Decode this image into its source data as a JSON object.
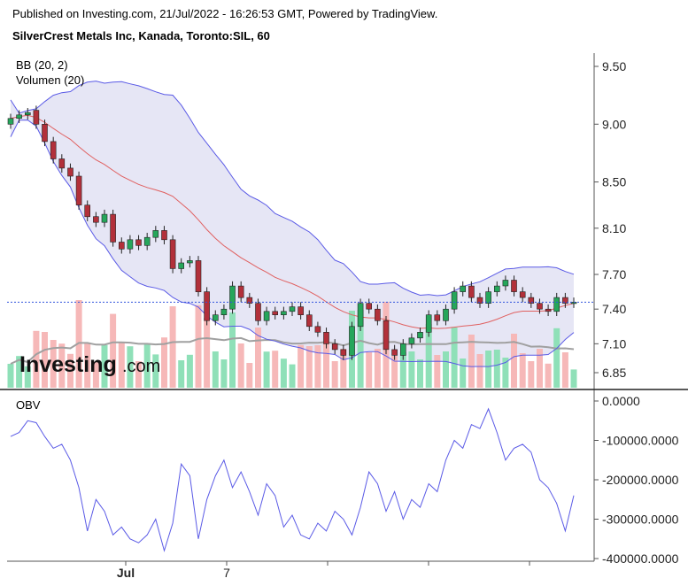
{
  "header": {
    "published": "Published on Investing.com, 21/Jul/2022 - 16:26:53 GMT, Powered by TradingView.",
    "title": "SilverCrest Metals Inc, Kanada, Toronto:SIL, 60"
  },
  "indicators": {
    "bb": "BB (20, 2)",
    "volume": "Volumen (20)",
    "obv": "OBV"
  },
  "logo": {
    "main": "Investing",
    "suffix": ".com"
  },
  "colors": {
    "up": "#26a65b",
    "down": "#b2303a",
    "bb_band": "#5a5ae6",
    "bb_fill": "#e6e6f5",
    "bb_mid": "#e06060",
    "vol_up": "#8fe0b8",
    "vol_down": "#f6b8b8",
    "vol_ma": "#a0a0a0",
    "obv_line": "#5a5ae6",
    "last_price_line": "#3355dd"
  },
  "chart_data": [
    {
      "type": "candlestick",
      "title": "SilverCrest Metals Inc, Kanada, Toronto:SIL, 60",
      "interval": "60 min",
      "x_tick_labels": [
        "Jul",
        "7",
        "",
        "",
        ""
      ],
      "y_ticks": [
        9.5,
        9.0,
        8.5,
        8.1,
        7.7,
        7.4,
        7.1,
        6.85
      ],
      "y_tick_labels": [
        "9.50",
        "9.00",
        "8.50",
        "8.10",
        "7.70",
        "7.40",
        "7.10",
        "6.85"
      ],
      "ylim": [
        6.8,
        9.6
      ],
      "last_price": 7.46,
      "close": [
        9.05,
        9.08,
        9.1,
        9.0,
        8.85,
        8.7,
        8.62,
        8.55,
        8.3,
        8.2,
        8.15,
        8.22,
        7.98,
        7.92,
        8.0,
        7.95,
        8.02,
        8.08,
        8.0,
        7.75,
        7.8,
        7.82,
        7.55,
        7.3,
        7.35,
        7.4,
        7.6,
        7.5,
        7.45,
        7.3,
        7.38,
        7.35,
        7.38,
        7.42,
        7.35,
        7.25,
        7.2,
        7.1,
        7.05,
        7.0,
        7.25,
        7.45,
        7.4,
        7.3,
        7.05,
        7.0,
        7.1,
        7.15,
        7.2,
        7.35,
        7.3,
        7.4,
        7.55,
        7.6,
        7.5,
        7.45,
        7.55,
        7.6,
        7.65,
        7.55,
        7.5,
        7.45,
        7.4,
        7.38,
        7.5,
        7.45,
        7.46
      ],
      "open": [
        9.0,
        9.05,
        9.08,
        9.12,
        9.0,
        8.85,
        8.7,
        8.62,
        8.55,
        8.3,
        8.2,
        8.15,
        8.22,
        7.98,
        7.92,
        8.0,
        7.95,
        8.02,
        8.08,
        8.0,
        7.75,
        7.8,
        7.82,
        7.55,
        7.3,
        7.35,
        7.4,
        7.6,
        7.5,
        7.45,
        7.3,
        7.38,
        7.35,
        7.38,
        7.42,
        7.35,
        7.25,
        7.2,
        7.1,
        7.05,
        7.0,
        7.25,
        7.45,
        7.4,
        7.3,
        7.05,
        7.0,
        7.1,
        7.15,
        7.2,
        7.35,
        7.3,
        7.4,
        7.55,
        7.6,
        7.5,
        7.45,
        7.55,
        7.6,
        7.65,
        7.55,
        7.5,
        7.45,
        7.4,
        7.38,
        7.5,
        7.45
      ]
    },
    {
      "type": "line",
      "title": "OBV",
      "y_ticks": [
        0,
        -100000,
        -200000,
        -300000,
        -400000
      ],
      "y_tick_labels": [
        "0.0000",
        "-100000.0000",
        "-200000.0000",
        "-300000.0000",
        "-400000.0000"
      ],
      "ylim": [
        -410000,
        10000
      ],
      "values": [
        -90000,
        -80000,
        -50000,
        -55000,
        -90000,
        -120000,
        -110000,
        -150000,
        -220000,
        -330000,
        -250000,
        -280000,
        -340000,
        -320000,
        -350000,
        -360000,
        -340000,
        -300000,
        -380000,
        -310000,
        -160000,
        -190000,
        -350000,
        -250000,
        -190000,
        -150000,
        -220000,
        -180000,
        -230000,
        -290000,
        -210000,
        -240000,
        -320000,
        -290000,
        -340000,
        -350000,
        -310000,
        -330000,
        -280000,
        -300000,
        -340000,
        -270000,
        -180000,
        -210000,
        -280000,
        -230000,
        -300000,
        -250000,
        -270000,
        -210000,
        -230000,
        -150000,
        -100000,
        -120000,
        -60000,
        -70000,
        -20000,
        -80000,
        -150000,
        -120000,
        -110000,
        -130000,
        -200000,
        -220000,
        -260000,
        -330000,
        -240000
      ]
    }
  ]
}
